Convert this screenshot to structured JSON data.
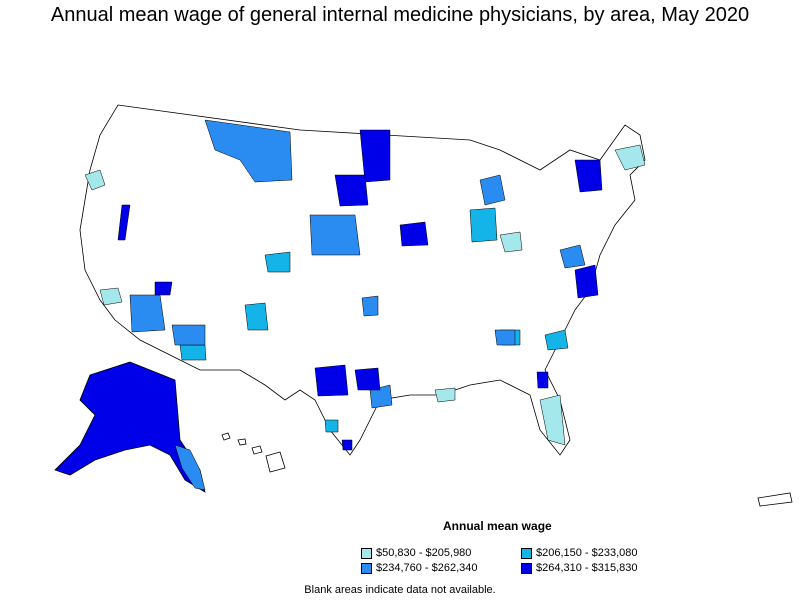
{
  "title": "Annual mean wage of general internal medicine physicians, by area, May 2020",
  "legend": {
    "title": "Annual mean wage",
    "items": [
      {
        "label": "$50,830 - $205,980",
        "color": "#a5e8ec"
      },
      {
        "label": "$206,150 - $233,080",
        "color": "#14b4e8"
      },
      {
        "label": "$234,760 - $262,340",
        "color": "#2a8cf0"
      },
      {
        "label": "$264,310 - $315,830",
        "color": "#0000e8"
      }
    ]
  },
  "note": "Blank areas indicate data not available.",
  "colors": {
    "no_data": "#ffffff",
    "border": "#000000"
  }
}
